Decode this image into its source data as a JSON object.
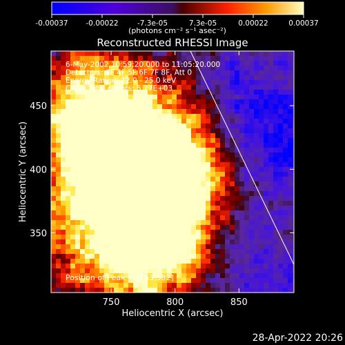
{
  "chart_data": {
    "type": "heatmap",
    "title": "Reconstructed RHESSI Image",
    "xlabel": "Heliocentric X (arcsec)",
    "ylabel": "Heliocentric Y (arcsec)",
    "xlim": [
      703,
      893
    ],
    "ylim": [
      303,
      493
    ],
    "x_ticks": [
      750,
      800,
      850
    ],
    "y_ticks": [
      350,
      400,
      450
    ],
    "annotations": [
      "6-May-2002 10:59:20.000 to 11:05:20.000",
      "Detectors: 3F 4F 5F 6F 7F 8F, Att 0",
      "Energy Range: 12.0 - 25.0 keV",
      "Clean     Total counts: 5.77E+03"
    ],
    "peak_label": "Position of Peak = [763,382]",
    "peak": [
      763,
      382
    ],
    "limb_line": [
      [
        812,
        493
      ],
      [
        893,
        325
      ]
    ],
    "colorbar": {
      "min": -0.00037,
      "max": 0.00037,
      "ticks": [
        "-0.00037",
        "-0.00022",
        "-7.3e-05",
        "7.3e-05",
        "0.00022",
        "0.00037"
      ],
      "unit": "(photons cm⁻² s⁻¹ asec⁻²)"
    }
  },
  "footer": {
    "timestamp": "28-Apr-2022 20:26"
  }
}
